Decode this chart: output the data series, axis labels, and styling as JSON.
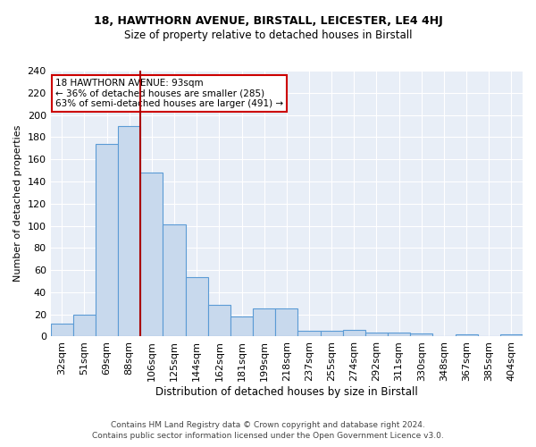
{
  "title": "18, HAWTHORN AVENUE, BIRSTALL, LEICESTER, LE4 4HJ",
  "subtitle": "Size of property relative to detached houses in Birstall",
  "xlabel": "Distribution of detached houses by size in Birstall",
  "ylabel": "Number of detached properties",
  "categories": [
    "32sqm",
    "51sqm",
    "69sqm",
    "88sqm",
    "106sqm",
    "125sqm",
    "144sqm",
    "162sqm",
    "181sqm",
    "199sqm",
    "218sqm",
    "237sqm",
    "255sqm",
    "274sqm",
    "292sqm",
    "311sqm",
    "330sqm",
    "348sqm",
    "367sqm",
    "385sqm",
    "404sqm"
  ],
  "values": [
    12,
    20,
    174,
    190,
    148,
    101,
    54,
    29,
    18,
    25,
    25,
    5,
    5,
    6,
    4,
    4,
    3,
    0,
    2,
    0,
    2
  ],
  "bar_color": "#c8d9ed",
  "bar_edge_color": "#5b9bd5",
  "background_color": "#e8eef7",
  "grid_color": "#ffffff",
  "red_line_x": 3.5,
  "red_line_color": "#aa0000",
  "annotation_text": "18 HAWTHORN AVENUE: 93sqm\n← 36% of detached houses are smaller (285)\n63% of semi-detached houses are larger (491) →",
  "annotation_box_color": "#ffffff",
  "annotation_box_edge": "#cc0000",
  "ylim": [
    0,
    240
  ],
  "yticks": [
    0,
    20,
    40,
    60,
    80,
    100,
    120,
    140,
    160,
    180,
    200,
    220,
    240
  ],
  "footer1": "Contains HM Land Registry data © Crown copyright and database right 2024.",
  "footer2": "Contains public sector information licensed under the Open Government Licence v3.0."
}
